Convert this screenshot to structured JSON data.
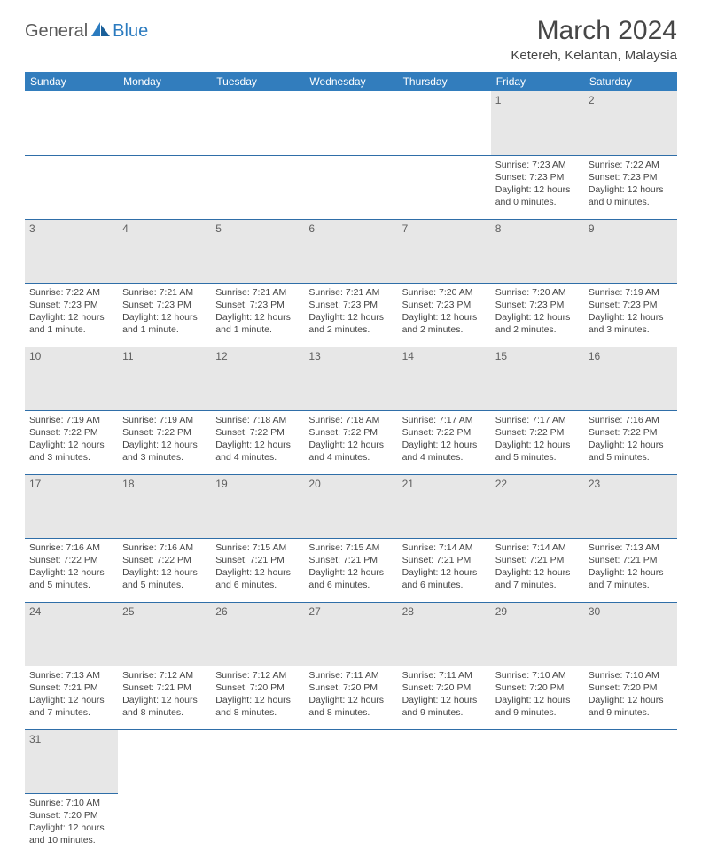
{
  "logo": {
    "part1": "General",
    "part2": "Blue"
  },
  "title": "March 2024",
  "location": "Ketereh, Kelantan, Malaysia",
  "colors": {
    "header_bg": "#327dbd",
    "header_text": "#ffffff",
    "daynum_bg": "#e7e7e7",
    "daynum_text": "#606060",
    "row_border": "#2f6ea8",
    "body_text": "#444444",
    "title_text": "#464646",
    "logo_blue": "#2b7bbf",
    "logo_gray": "#5a5a5a"
  },
  "weekdays": [
    "Sunday",
    "Monday",
    "Tuesday",
    "Wednesday",
    "Thursday",
    "Friday",
    "Saturday"
  ],
  "layout": {
    "columns": 7,
    "cell_font_size": 10.5,
    "header_font_size": 12
  },
  "weeks": [
    [
      null,
      null,
      null,
      null,
      null,
      {
        "n": "1",
        "sunrise": "7:23 AM",
        "sunset": "7:23 PM",
        "day_h": "12",
        "day_m": "0"
      },
      {
        "n": "2",
        "sunrise": "7:22 AM",
        "sunset": "7:23 PM",
        "day_h": "12",
        "day_m": "0"
      }
    ],
    [
      {
        "n": "3",
        "sunrise": "7:22 AM",
        "sunset": "7:23 PM",
        "day_h": "12",
        "day_m": "1"
      },
      {
        "n": "4",
        "sunrise": "7:21 AM",
        "sunset": "7:23 PM",
        "day_h": "12",
        "day_m": "1"
      },
      {
        "n": "5",
        "sunrise": "7:21 AM",
        "sunset": "7:23 PM",
        "day_h": "12",
        "day_m": "1"
      },
      {
        "n": "6",
        "sunrise": "7:21 AM",
        "sunset": "7:23 PM",
        "day_h": "12",
        "day_m": "2"
      },
      {
        "n": "7",
        "sunrise": "7:20 AM",
        "sunset": "7:23 PM",
        "day_h": "12",
        "day_m": "2"
      },
      {
        "n": "8",
        "sunrise": "7:20 AM",
        "sunset": "7:23 PM",
        "day_h": "12",
        "day_m": "2"
      },
      {
        "n": "9",
        "sunrise": "7:19 AM",
        "sunset": "7:23 PM",
        "day_h": "12",
        "day_m": "3"
      }
    ],
    [
      {
        "n": "10",
        "sunrise": "7:19 AM",
        "sunset": "7:22 PM",
        "day_h": "12",
        "day_m": "3"
      },
      {
        "n": "11",
        "sunrise": "7:19 AM",
        "sunset": "7:22 PM",
        "day_h": "12",
        "day_m": "3"
      },
      {
        "n": "12",
        "sunrise": "7:18 AM",
        "sunset": "7:22 PM",
        "day_h": "12",
        "day_m": "4"
      },
      {
        "n": "13",
        "sunrise": "7:18 AM",
        "sunset": "7:22 PM",
        "day_h": "12",
        "day_m": "4"
      },
      {
        "n": "14",
        "sunrise": "7:17 AM",
        "sunset": "7:22 PM",
        "day_h": "12",
        "day_m": "4"
      },
      {
        "n": "15",
        "sunrise": "7:17 AM",
        "sunset": "7:22 PM",
        "day_h": "12",
        "day_m": "5"
      },
      {
        "n": "16",
        "sunrise": "7:16 AM",
        "sunset": "7:22 PM",
        "day_h": "12",
        "day_m": "5"
      }
    ],
    [
      {
        "n": "17",
        "sunrise": "7:16 AM",
        "sunset": "7:22 PM",
        "day_h": "12",
        "day_m": "5"
      },
      {
        "n": "18",
        "sunrise": "7:16 AM",
        "sunset": "7:22 PM",
        "day_h": "12",
        "day_m": "5"
      },
      {
        "n": "19",
        "sunrise": "7:15 AM",
        "sunset": "7:21 PM",
        "day_h": "12",
        "day_m": "6"
      },
      {
        "n": "20",
        "sunrise": "7:15 AM",
        "sunset": "7:21 PM",
        "day_h": "12",
        "day_m": "6"
      },
      {
        "n": "21",
        "sunrise": "7:14 AM",
        "sunset": "7:21 PM",
        "day_h": "12",
        "day_m": "6"
      },
      {
        "n": "22",
        "sunrise": "7:14 AM",
        "sunset": "7:21 PM",
        "day_h": "12",
        "day_m": "7"
      },
      {
        "n": "23",
        "sunrise": "7:13 AM",
        "sunset": "7:21 PM",
        "day_h": "12",
        "day_m": "7"
      }
    ],
    [
      {
        "n": "24",
        "sunrise": "7:13 AM",
        "sunset": "7:21 PM",
        "day_h": "12",
        "day_m": "7"
      },
      {
        "n": "25",
        "sunrise": "7:12 AM",
        "sunset": "7:21 PM",
        "day_h": "12",
        "day_m": "8"
      },
      {
        "n": "26",
        "sunrise": "7:12 AM",
        "sunset": "7:20 PM",
        "day_h": "12",
        "day_m": "8"
      },
      {
        "n": "27",
        "sunrise": "7:11 AM",
        "sunset": "7:20 PM",
        "day_h": "12",
        "day_m": "8"
      },
      {
        "n": "28",
        "sunrise": "7:11 AM",
        "sunset": "7:20 PM",
        "day_h": "12",
        "day_m": "9"
      },
      {
        "n": "29",
        "sunrise": "7:10 AM",
        "sunset": "7:20 PM",
        "day_h": "12",
        "day_m": "9"
      },
      {
        "n": "30",
        "sunrise": "7:10 AM",
        "sunset": "7:20 PM",
        "day_h": "12",
        "day_m": "9"
      }
    ],
    [
      {
        "n": "31",
        "sunrise": "7:10 AM",
        "sunset": "7:20 PM",
        "day_h": "12",
        "day_m": "10"
      },
      null,
      null,
      null,
      null,
      null,
      null
    ]
  ],
  "labels": {
    "sunrise": "Sunrise:",
    "sunset": "Sunset:",
    "daylight": "Daylight:",
    "hours": "hours",
    "and": "and",
    "minutes": "minutes.",
    "minute": "minute."
  }
}
